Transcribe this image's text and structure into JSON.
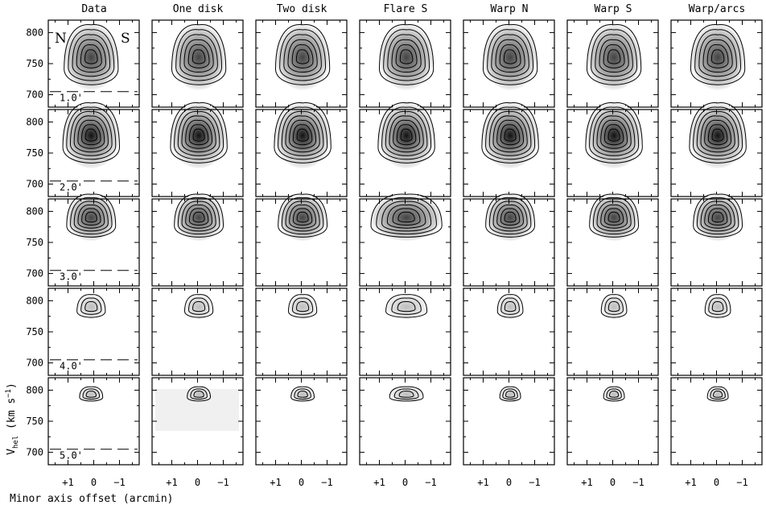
{
  "figure": {
    "columns": [
      "Data",
      "One disk",
      "Two disk",
      "Flare S",
      "Warp N",
      "Warp S",
      "Warp/arcs"
    ],
    "row_offsets": [
      "1.0'",
      "2.0'",
      "3.0'",
      "4.0'",
      "5.0'"
    ],
    "direction_labels": {
      "north": "N",
      "south": "S"
    },
    "y_ticks": [
      "800",
      "750",
      "700"
    ],
    "x_ticks": [
      "+1",
      "0",
      "−1"
    ],
    "y_axis_label": "V",
    "y_axis_label_sub": "hel",
    "y_axis_label_units": "(km s",
    "y_axis_label_exp": "−1",
    "y_axis_label_close": ")",
    "x_axis_label": "Minor axis offset (arcmin)"
  },
  "chart_data": {
    "type": "contour-grid",
    "panel_rows": 5,
    "panel_cols": 7,
    "x_axis": {
      "quantity": "minor axis offset",
      "unit": "arcmin",
      "ticks": [
        1,
        0,
        -1
      ]
    },
    "y_axis": {
      "quantity": "heliocentric velocity",
      "unit": "km/s",
      "ticks": [
        700,
        750,
        800
      ]
    }
  }
}
